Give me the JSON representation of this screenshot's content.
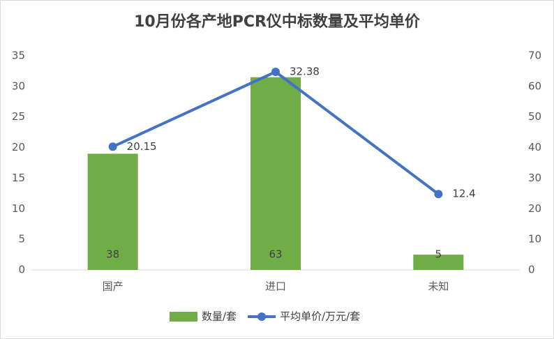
{
  "chart_data": {
    "type": "bar-line",
    "title": "10月份各产地PCR仪中标数量及平均单价",
    "categories": [
      "国产",
      "进口",
      "未知"
    ],
    "series": [
      {
        "name": "数量/套",
        "type": "bar",
        "axis": "y2",
        "color": "#70ad47",
        "values": [
          38,
          63,
          5
        ]
      },
      {
        "name": "平均单价/万元/套",
        "type": "line",
        "axis": "y",
        "color": "#4472c4",
        "values": [
          20.15,
          32.38,
          12.4
        ]
      }
    ],
    "ylim": [
      0,
      35
    ],
    "yticks": [
      0,
      5,
      10,
      15,
      20,
      25,
      30,
      35
    ],
    "y2lim": [
      0,
      70
    ],
    "y2ticks": [
      0,
      10,
      20,
      30,
      40,
      50,
      60,
      70
    ],
    "grid": false,
    "legend": "bottom"
  }
}
